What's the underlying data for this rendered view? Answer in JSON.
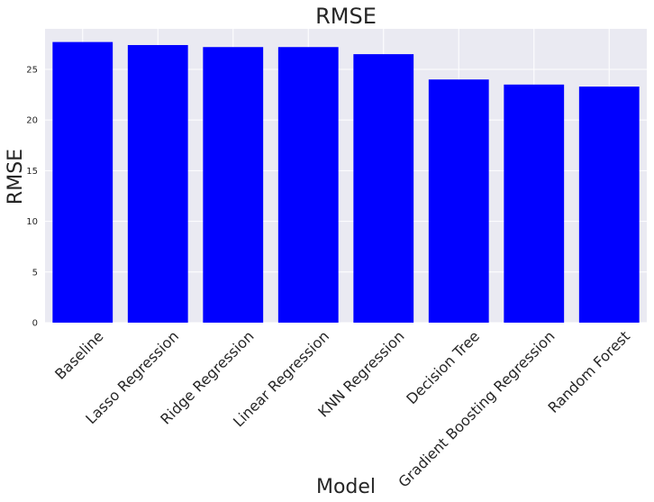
{
  "chart_data": {
    "type": "bar",
    "title": "RMSE",
    "xlabel": "Model",
    "ylabel": "RMSE",
    "categories": [
      "Baseline",
      "Lasso Regression",
      "Ridge Regression",
      "Linear Regression",
      "KNN Regression",
      "Decision Tree",
      "Gradient Boosting Regression",
      "Random Forest"
    ],
    "values": [
      27.7,
      27.4,
      27.2,
      27.2,
      26.5,
      24.0,
      23.5,
      23.3
    ],
    "ylim": [
      0,
      29
    ],
    "yticks": [
      0,
      5,
      10,
      15,
      20,
      25
    ],
    "grid": true,
    "bar_color": "#0000ff",
    "plot_background": "#eaeaf2",
    "grid_color": "#ffffff"
  }
}
